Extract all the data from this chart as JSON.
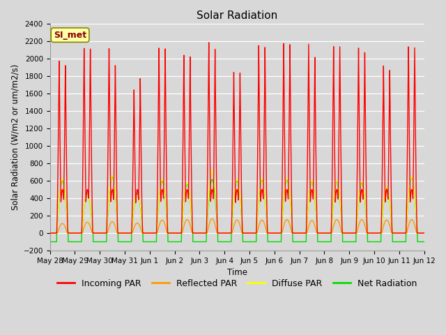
{
  "title": "Solar Radiation",
  "ylabel": "Solar Radiation (W/m2 or um/m2/s)",
  "xlabel": "Time",
  "ylim": [
    -200,
    2400
  ],
  "yticks": [
    -200,
    0,
    200,
    400,
    600,
    800,
    1000,
    1200,
    1400,
    1600,
    1800,
    2000,
    2200,
    2400
  ],
  "background_color": "#d8d8d8",
  "plot_bg_color": "#d8d8d8",
  "grid_color": "#ffffff",
  "annotation_text": "SI_met",
  "annotation_bg": "#ffffaa",
  "annotation_border": "#888800",
  "annotation_text_color": "#880000",
  "line_colors": {
    "incoming": "#ff0000",
    "reflected": "#ff9900",
    "diffuse": "#ffff00",
    "net": "#00dd00"
  },
  "legend_labels": [
    "Incoming PAR",
    "Reflected PAR",
    "Diffuse PAR",
    "Net Radiation"
  ],
  "num_days": 15,
  "day_labels": [
    "May 28",
    "May 29",
    "May 30",
    "May 31",
    "Jun 1",
    "Jun 2",
    "Jun 3",
    "Jun 4",
    "Jun 5",
    "Jun 6",
    "Jun 7",
    "Jun 8",
    "Jun 9",
    "Jun 10",
    "Jun 11",
    "Jun 12"
  ],
  "incoming_peaks": [
    2020,
    2170,
    2160,
    1670,
    2150,
    2060,
    2200,
    1850,
    2150,
    2180,
    2180,
    2160,
    2150,
    1950,
    2180
  ],
  "incoming_peaks2": [
    1970,
    2160,
    1960,
    1800,
    2140,
    2040,
    2120,
    1840,
    2130,
    2170,
    2030,
    2160,
    2100,
    1900,
    2170
  ],
  "reflected_peaks": [
    110,
    125,
    130,
    115,
    150,
    155,
    165,
    150,
    150,
    155,
    145,
    155,
    155,
    150,
    155
  ],
  "diffuse_peaks": [
    620,
    470,
    660,
    480,
    615,
    575,
    720,
    615,
    625,
    625,
    600,
    600,
    590,
    530,
    645
  ],
  "net_peaks": [
    600,
    455,
    645,
    460,
    595,
    560,
    615,
    600,
    610,
    610,
    585,
    590,
    575,
    515,
    635
  ],
  "night_net": -100,
  "title_fontsize": 11,
  "tick_fontsize": 7.5,
  "label_fontsize": 8.5,
  "legend_fontsize": 9
}
